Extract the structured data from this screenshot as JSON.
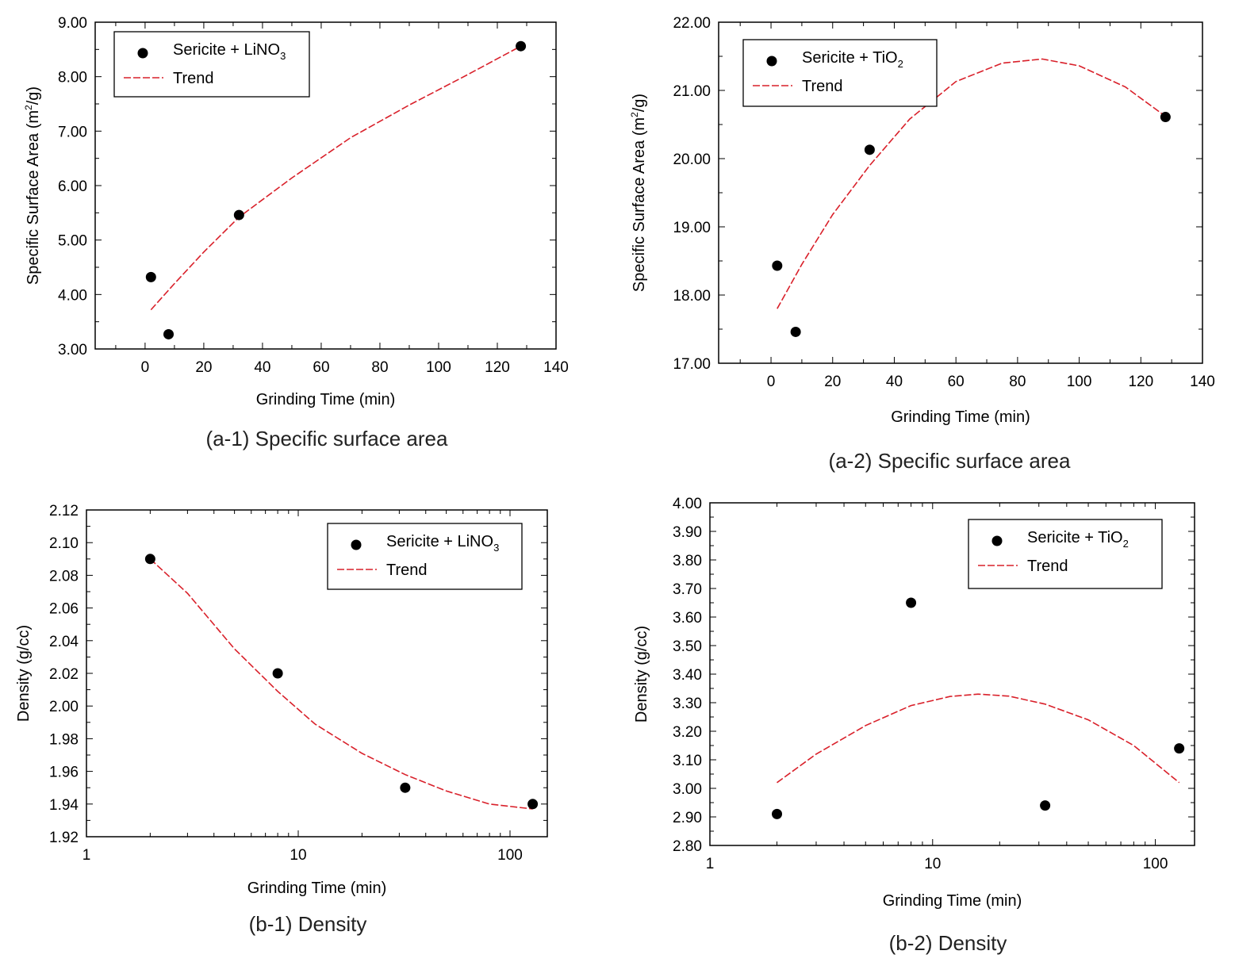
{
  "chart_data": [
    {
      "id": "a1",
      "type": "scatter",
      "xscale": "linear",
      "caption": "(a-1) Specific surface area",
      "xlabel": "Grinding Time (min)",
      "ylabel": {
        "pre": "Specific Surface Area (m",
        "sup": "2",
        "post": "/g)"
      },
      "xlim": [
        -17,
        140
      ],
      "ylim": [
        3.0,
        9.0
      ],
      "xticks": [
        0,
        20,
        40,
        60,
        80,
        100,
        120,
        140
      ],
      "xtick_labels": [
        "0",
        "20",
        "40",
        "60",
        "80",
        "100",
        "120",
        "140"
      ],
      "yticks": [
        3.0,
        4.0,
        5.0,
        6.0,
        7.0,
        8.0,
        9.0
      ],
      "ytick_labels": [
        "3.00",
        "4.00",
        "5.00",
        "6.00",
        "7.00",
        "8.00",
        "9.00"
      ],
      "points": [
        {
          "x": 2,
          "y": 4.32
        },
        {
          "x": 8,
          "y": 3.27
        },
        {
          "x": 32,
          "y": 5.46
        },
        {
          "x": 128,
          "y": 8.56
        }
      ],
      "trend": {
        "x": [
          2,
          10,
          20,
          32,
          50,
          70,
          90,
          110,
          128
        ],
        "y": [
          3.72,
          4.2,
          4.78,
          5.42,
          6.14,
          6.88,
          7.48,
          8.04,
          8.56
        ]
      },
      "legend": {
        "series_pre": "Sericite + LiNO",
        "series_sub": "3",
        "series_post": "",
        "trend": "Trend"
      },
      "colors": {
        "points": "#000000",
        "trend": "#d9202a"
      }
    },
    {
      "id": "a2",
      "type": "scatter",
      "xscale": "linear",
      "caption": "(a-2) Specific surface area",
      "xlabel": "Grinding Time (min)",
      "ylabel": {
        "pre": "Specific Surface Area (m",
        "sup": "2",
        "post": "/g)"
      },
      "xlim": [
        -17,
        140
      ],
      "ylim": [
        17.0,
        22.0
      ],
      "xticks": [
        0,
        20,
        40,
        60,
        80,
        100,
        120,
        140
      ],
      "xtick_labels": [
        "0",
        "20",
        "40",
        "60",
        "80",
        "100",
        "120",
        "140"
      ],
      "yticks": [
        17.0,
        18.0,
        19.0,
        20.0,
        21.0,
        22.0
      ],
      "ytick_labels": [
        "17.00",
        "18.00",
        "19.00",
        "20.00",
        "21.00",
        "22.00"
      ],
      "points": [
        {
          "x": 2,
          "y": 18.43
        },
        {
          "x": 8,
          "y": 17.46
        },
        {
          "x": 32,
          "y": 20.13
        },
        {
          "x": 128,
          "y": 20.61
        }
      ],
      "trend": {
        "x": [
          2,
          10,
          20,
          32,
          45,
          60,
          75,
          88,
          100,
          115,
          128
        ],
        "y": [
          17.8,
          18.45,
          19.18,
          19.9,
          20.58,
          21.13,
          21.4,
          21.46,
          21.36,
          21.05,
          20.62
        ]
      },
      "legend": {
        "series_pre": "Sericite + TiO",
        "series_sub": "2",
        "series_post": "",
        "trend": "Trend"
      },
      "colors": {
        "points": "#000000",
        "trend": "#d9202a"
      }
    },
    {
      "id": "b1",
      "type": "scatter",
      "xscale": "log",
      "caption": "(b-1) Density",
      "xlabel": "Grinding Time (min)",
      "ylabel": {
        "pre": "Density (g/cc)",
        "sup": "",
        "post": ""
      },
      "xlim": [
        1,
        150
      ],
      "ylim": [
        1.92,
        2.12
      ],
      "xticks": [
        1,
        10,
        100
      ],
      "xtick_labels": [
        "1",
        "10",
        "100"
      ],
      "yticks": [
        1.92,
        1.94,
        1.96,
        1.98,
        2.0,
        2.02,
        2.04,
        2.06,
        2.08,
        2.1,
        2.12
      ],
      "ytick_labels": [
        "1.92",
        "1.94",
        "1.96",
        "1.98",
        "2.00",
        "2.02",
        "2.04",
        "2.06",
        "2.08",
        "2.10",
        "2.12"
      ],
      "points": [
        {
          "x": 2,
          "y": 2.09
        },
        {
          "x": 8,
          "y": 2.02
        },
        {
          "x": 32,
          "y": 1.95
        },
        {
          "x": 128,
          "y": 1.94
        }
      ],
      "trend": {
        "x": [
          2,
          3,
          5,
          8,
          12,
          20,
          32,
          50,
          80,
          128
        ],
        "y": [
          2.09,
          2.069,
          2.035,
          2.009,
          1.989,
          1.971,
          1.958,
          1.948,
          1.94,
          1.937
        ]
      },
      "legend": {
        "series_pre": "Sericite + LiNO",
        "series_sub": "3",
        "series_post": "",
        "trend": "Trend"
      },
      "colors": {
        "points": "#000000",
        "trend": "#d9202a"
      }
    },
    {
      "id": "b2",
      "type": "scatter",
      "xscale": "log",
      "caption": "(b-2) Density",
      "xlabel": "Grinding Time (min)",
      "ylabel": {
        "pre": "Density (g/cc)",
        "sup": "",
        "post": ""
      },
      "xlim": [
        1,
        150
      ],
      "ylim": [
        2.8,
        4.0
      ],
      "xticks": [
        1,
        10,
        100
      ],
      "xtick_labels": [
        "1",
        "10",
        "100"
      ],
      "yticks": [
        2.8,
        2.9,
        3.0,
        3.1,
        3.2,
        3.3,
        3.4,
        3.5,
        3.6,
        3.7,
        3.8,
        3.9,
        4.0
      ],
      "ytick_labels": [
        "2.80",
        "2.90",
        "3.00",
        "3.10",
        "3.20",
        "3.30",
        "3.40",
        "3.50",
        "3.60",
        "3.70",
        "3.80",
        "3.90",
        "4.00"
      ],
      "points": [
        {
          "x": 2,
          "y": 2.91
        },
        {
          "x": 8,
          "y": 3.65
        },
        {
          "x": 32,
          "y": 2.94
        },
        {
          "x": 128,
          "y": 3.14
        }
      ],
      "trend": {
        "x": [
          2,
          3,
          5,
          8,
          12,
          16,
          22,
          32,
          50,
          80,
          128
        ],
        "y": [
          3.02,
          3.12,
          3.22,
          3.29,
          3.322,
          3.33,
          3.323,
          3.295,
          3.24,
          3.15,
          3.02
        ]
      },
      "legend": {
        "series_pre": "Sericite + TiO",
        "series_sub": "2",
        "series_post": "",
        "trend": "Trend"
      },
      "colors": {
        "points": "#000000",
        "trend": "#d9202a"
      }
    }
  ]
}
